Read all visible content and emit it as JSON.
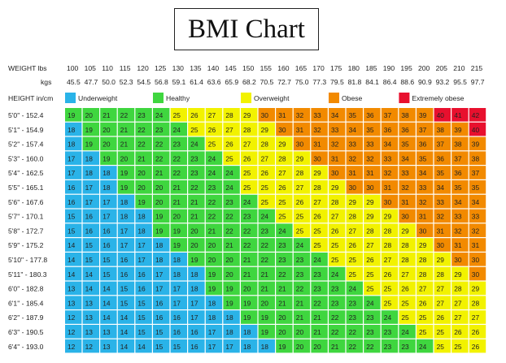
{
  "chart_data": {
    "type": "heatmap",
    "title": "BMI Chart",
    "weight_label": "WEIGHT lbs",
    "kgs_label": "kgs",
    "height_label": "HEIGHT in/cm",
    "weights_lbs": [
      "100",
      "105",
      "110",
      "115",
      "120",
      "125",
      "130",
      "135",
      "140",
      "145",
      "150",
      "155",
      "160",
      "165",
      "170",
      "175",
      "180",
      "185",
      "190",
      "195",
      "200",
      "205",
      "210",
      "215"
    ],
    "weights_kgs": [
      "45.5",
      "47.7",
      "50.0",
      "52.3",
      "54.5",
      "56.8",
      "59.1",
      "61.4",
      "63.6",
      "65.9",
      "68.2",
      "70.5",
      "72.7",
      "75.0",
      "77.3",
      "79.5",
      "81.8",
      "84.1",
      "86.4",
      "88.6",
      "90.9",
      "93.2",
      "95.5",
      "97.7"
    ],
    "heights": [
      "5'0\" - 152.4",
      "5'1\" - 154.9",
      "5'2\" - 157.4",
      "5'3\" - 160.0",
      "5'4\" - 162.5",
      "5'5\" - 165.1",
      "5'6\" - 167.6",
      "5'7\" - 170.1",
      "5'8\" - 172.7",
      "5'9\" - 175.2",
      "5'10\" - 177.8",
      "5'11\" - 180.3",
      "6'0\" - 182.8",
      "6'1\" - 185.4",
      "6'2\" - 187.9",
      "6'3\" - 190.5",
      "6'4\" - 193.0"
    ],
    "legend": [
      {
        "label": "Underweight",
        "color": "#2ab3e8"
      },
      {
        "label": "Healthy",
        "color": "#3fd63f"
      },
      {
        "label": "Overweight",
        "color": "#f2f200"
      },
      {
        "label": "Obese",
        "color": "#f28a00"
      },
      {
        "label": "Extremely obese",
        "color": "#e8102e"
      }
    ],
    "values": [
      [
        19,
        20,
        21,
        22,
        23,
        24,
        25,
        26,
        27,
        28,
        29,
        30,
        31,
        32,
        33,
        34,
        35,
        36,
        37,
        38,
        39,
        40,
        41,
        42
      ],
      [
        18,
        19,
        20,
        21,
        22,
        23,
        24,
        25,
        26,
        27,
        28,
        29,
        30,
        31,
        32,
        33,
        34,
        35,
        36,
        36,
        37,
        38,
        39,
        40
      ],
      [
        18,
        19,
        20,
        21,
        22,
        22,
        23,
        24,
        25,
        26,
        27,
        28,
        29,
        30,
        31,
        32,
        33,
        33,
        34,
        35,
        36,
        37,
        38,
        39
      ],
      [
        17,
        18,
        19,
        20,
        21,
        22,
        22,
        23,
        24,
        25,
        26,
        27,
        28,
        29,
        30,
        31,
        32,
        32,
        33,
        34,
        35,
        36,
        37,
        38
      ],
      [
        17,
        18,
        18,
        19,
        20,
        21,
        22,
        23,
        24,
        24,
        25,
        26,
        27,
        28,
        29,
        30,
        31,
        31,
        32,
        33,
        34,
        35,
        36,
        37
      ],
      [
        16,
        17,
        18,
        19,
        20,
        20,
        21,
        22,
        23,
        24,
        25,
        25,
        26,
        27,
        28,
        29,
        30,
        30,
        31,
        32,
        33,
        34,
        35,
        35
      ],
      [
        16,
        17,
        17,
        18,
        19,
        20,
        21,
        21,
        22,
        23,
        24,
        25,
        25,
        26,
        27,
        28,
        29,
        29,
        30,
        31,
        32,
        33,
        34,
        34
      ],
      [
        15,
        16,
        17,
        18,
        18,
        19,
        20,
        21,
        22,
        22,
        23,
        24,
        25,
        25,
        26,
        27,
        28,
        29,
        29,
        30,
        31,
        32,
        33,
        33
      ],
      [
        15,
        16,
        16,
        17,
        18,
        19,
        19,
        20,
        21,
        22,
        22,
        23,
        24,
        25,
        25,
        26,
        27,
        28,
        28,
        29,
        30,
        31,
        32,
        32
      ],
      [
        14,
        15,
        16,
        17,
        17,
        18,
        19,
        20,
        20,
        21,
        22,
        22,
        23,
        24,
        25,
        25,
        26,
        27,
        28,
        28,
        29,
        30,
        31,
        31
      ],
      [
        14,
        15,
        15,
        16,
        17,
        18,
        18,
        19,
        20,
        20,
        21,
        22,
        23,
        23,
        24,
        25,
        25,
        26,
        27,
        28,
        28,
        29,
        30,
        30
      ],
      [
        14,
        14,
        15,
        16,
        16,
        17,
        18,
        18,
        19,
        20,
        21,
        21,
        22,
        23,
        23,
        24,
        25,
        25,
        26,
        27,
        28,
        28,
        29,
        30
      ],
      [
        13,
        14,
        14,
        15,
        16,
        17,
        17,
        18,
        19,
        19,
        20,
        21,
        21,
        22,
        23,
        23,
        24,
        25,
        25,
        26,
        27,
        27,
        28,
        29
      ],
      [
        13,
        13,
        14,
        15,
        15,
        16,
        17,
        17,
        18,
        19,
        19,
        20,
        21,
        21,
        22,
        23,
        23,
        24,
        25,
        25,
        26,
        27,
        27,
        28
      ],
      [
        12,
        13,
        14,
        14,
        15,
        16,
        16,
        17,
        18,
        18,
        19,
        19,
        20,
        21,
        21,
        22,
        23,
        23,
        24,
        25,
        25,
        26,
        27,
        27
      ],
      [
        12,
        13,
        13,
        14,
        15,
        15,
        16,
        16,
        17,
        18,
        18,
        19,
        20,
        20,
        21,
        22,
        22,
        23,
        23,
        24,
        25,
        25,
        26,
        26
      ],
      [
        12,
        12,
        13,
        14,
        14,
        15,
        15,
        16,
        17,
        17,
        18,
        18,
        19,
        20,
        20,
        21,
        22,
        22,
        23,
        23,
        24,
        25,
        25,
        26
      ]
    ]
  }
}
